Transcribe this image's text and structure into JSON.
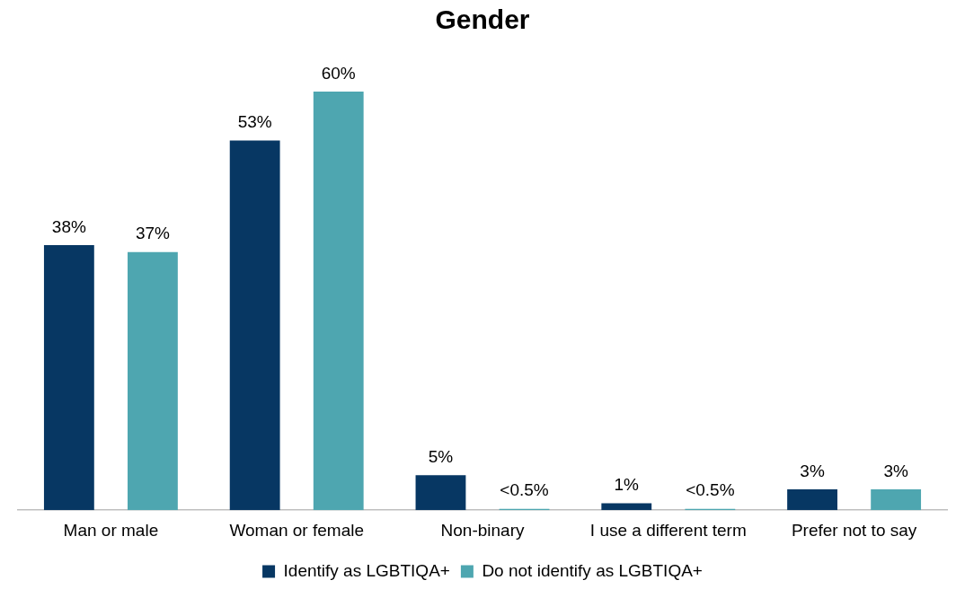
{
  "chart_data": {
    "type": "bar",
    "title": "Gender",
    "categories": [
      "Man or male",
      "Woman or female",
      "Non-binary",
      "I use a different term",
      "Prefer not to say"
    ],
    "series": [
      {
        "name": "Identify as LGBTIQA+",
        "color": "#073763",
        "values": [
          38,
          53,
          5,
          1,
          3
        ],
        "value_labels": [
          "38%",
          "53%",
          "5%",
          "1%",
          "3%"
        ]
      },
      {
        "name": "Do not identify as LGBTIQA+",
        "color": "#4ea6b0",
        "values": [
          37,
          60,
          0.2,
          0.2,
          3
        ],
        "value_labels": [
          "37%",
          "60%",
          "<0.5%",
          "<0.5%",
          "3%"
        ]
      }
    ],
    "legend": "bottom",
    "grid": false,
    "tick_labels": "x"
  }
}
